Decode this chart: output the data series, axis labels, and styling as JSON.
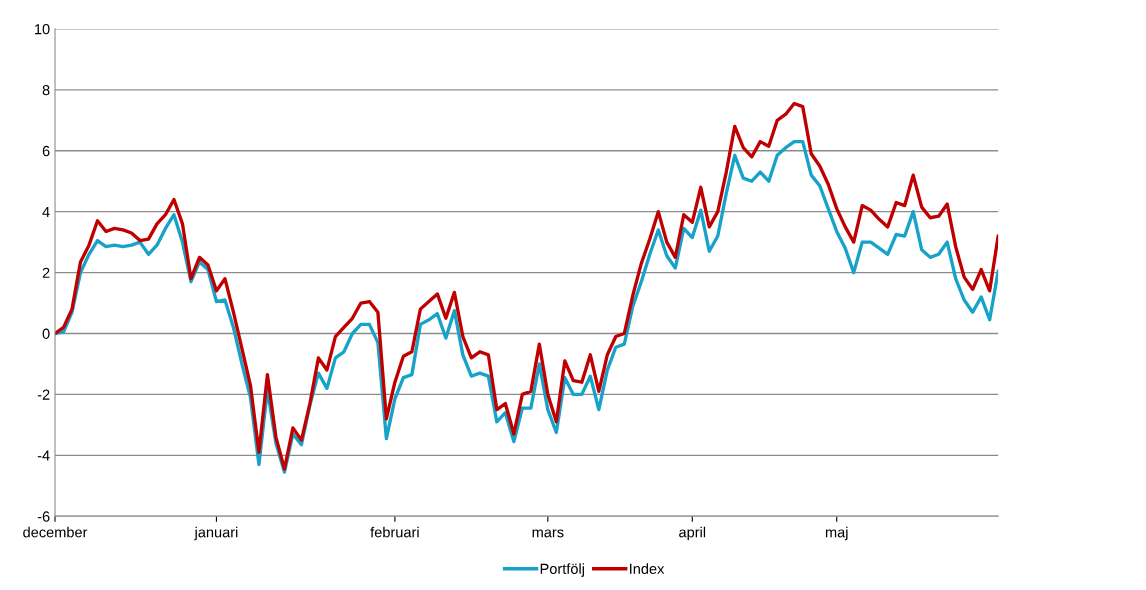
{
  "chart_data": {
    "type": "line",
    "categories": [
      "december",
      null,
      null,
      null,
      null,
      null,
      null,
      null,
      null,
      null,
      null,
      null,
      null,
      null,
      null,
      null,
      null,
      null,
      null,
      "januari",
      null,
      null,
      null,
      null,
      null,
      null,
      null,
      null,
      null,
      null,
      null,
      null,
      null,
      null,
      null,
      null,
      null,
      null,
      null,
      null,
      "februari",
      null,
      null,
      null,
      null,
      null,
      null,
      null,
      null,
      null,
      null,
      null,
      null,
      null,
      null,
      null,
      null,
      null,
      "mars",
      null,
      null,
      null,
      null,
      null,
      null,
      null,
      null,
      null,
      null,
      null,
      null,
      null,
      null,
      null,
      null,
      "april",
      null,
      null,
      null,
      null,
      null,
      null,
      null,
      null,
      null,
      null,
      null,
      null,
      null,
      null,
      null,
      null,
      "maj",
      null,
      null,
      null,
      null,
      null,
      null,
      null,
      null,
      null,
      null,
      null,
      null,
      null,
      null,
      null,
      null,
      null,
      null,
      null
    ],
    "series": [
      {
        "name": "Portfölj",
        "color": "#17a2c9",
        "values": [
          0,
          0.05,
          0.7,
          2.0,
          2.6,
          3.05,
          2.85,
          2.9,
          2.85,
          2.9,
          3.0,
          2.6,
          2.9,
          3.45,
          3.9,
          3.0,
          1.7,
          2.35,
          2.1,
          1.05,
          1.1,
          0.2,
          -1.0,
          -2.1,
          -4.3,
          -1.85,
          -3.6,
          -4.55,
          -3.3,
          -3.65,
          -2.35,
          -1.3,
          -1.8,
          -0.8,
          -0.6,
          0.0,
          0.3,
          0.3,
          -0.3,
          -3.45,
          -2.15,
          -1.45,
          -1.35,
          0.3,
          0.45,
          0.65,
          -0.15,
          0.75,
          -0.7,
          -1.4,
          -1.3,
          -1.4,
          -2.9,
          -2.6,
          -3.55,
          -2.45,
          -2.45,
          -1.0,
          -2.5,
          -3.25,
          -1.45,
          -2.0,
          -2.0,
          -1.4,
          -2.5,
          -1.2,
          -0.45,
          -0.35,
          0.9,
          1.7,
          2.6,
          3.4,
          2.55,
          2.15,
          3.45,
          3.15,
          4.05,
          2.7,
          3.2,
          4.6,
          5.85,
          5.1,
          5.0,
          5.3,
          5.0,
          5.85,
          6.1,
          6.3,
          6.3,
          5.2,
          4.85,
          4.1,
          3.35,
          2.8,
          2.0,
          3.0,
          3.0,
          2.8,
          2.6,
          3.25,
          3.2,
          4.0,
          2.75,
          2.5,
          2.6,
          3.0,
          1.8,
          1.1,
          0.7,
          1.2,
          0.45,
          2.05
        ]
      },
      {
        "name": "Index",
        "color": "#c00000",
        "values": [
          0,
          0.2,
          0.8,
          2.35,
          2.9,
          3.7,
          3.35,
          3.45,
          3.4,
          3.3,
          3.05,
          3.1,
          3.6,
          3.9,
          4.4,
          3.6,
          1.8,
          2.5,
          2.25,
          1.4,
          1.8,
          0.7,
          -0.5,
          -1.7,
          -3.9,
          -1.35,
          -3.4,
          -4.45,
          -3.1,
          -3.5,
          -2.3,
          -0.8,
          -1.2,
          -0.1,
          0.2,
          0.5,
          1.0,
          1.05,
          0.7,
          -2.8,
          -1.6,
          -0.75,
          -0.6,
          0.8,
          1.05,
          1.3,
          0.5,
          1.35,
          -0.1,
          -0.8,
          -0.6,
          -0.7,
          -2.5,
          -2.3,
          -3.3,
          -2.0,
          -1.9,
          -0.35,
          -2.0,
          -2.9,
          -0.9,
          -1.55,
          -1.6,
          -0.7,
          -1.9,
          -0.7,
          -0.1,
          0.0,
          1.25,
          2.3,
          3.1,
          4.0,
          3.0,
          2.5,
          3.9,
          3.65,
          4.8,
          3.5,
          4.0,
          5.3,
          6.8,
          6.1,
          5.8,
          6.3,
          6.15,
          7.0,
          7.2,
          7.55,
          7.45,
          5.9,
          5.5,
          4.9,
          4.1,
          3.5,
          3.0,
          4.2,
          4.05,
          3.75,
          3.5,
          4.3,
          4.2,
          5.2,
          4.15,
          3.8,
          3.85,
          4.25,
          2.85,
          1.85,
          1.45,
          2.1,
          1.4,
          3.2
        ]
      }
    ],
    "ylim": [
      -6,
      10
    ],
    "yticks": [
      -6,
      -4,
      -2,
      0,
      2,
      4,
      6,
      8,
      10
    ],
    "grid": "y",
    "legend": "bottom",
    "marker": "none",
    "line_style": "solid"
  }
}
